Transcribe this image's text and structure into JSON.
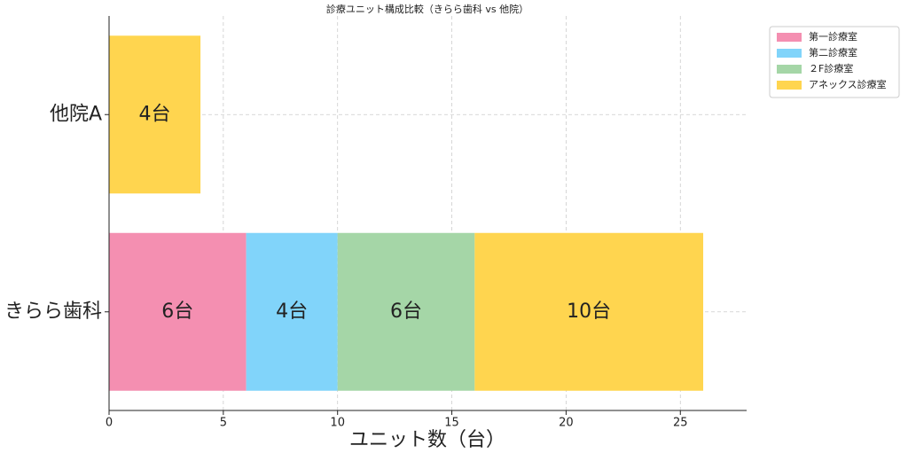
{
  "chart_data": {
    "type": "stacked-barh",
    "title": "診療ユニット構成比較（きらら歯科 vs 他院）",
    "xlabel": "ユニット数（台）",
    "categories": [
      "きらら歯科",
      "他院A"
    ],
    "series": [
      {
        "name": "第一診療室",
        "color": "#f48fb1",
        "values": [
          6,
          0
        ],
        "value_labels": [
          "6台",
          null
        ]
      },
      {
        "name": "第二診療室",
        "color": "#81d4fa",
        "values": [
          4,
          0
        ],
        "value_labels": [
          "4台",
          null
        ]
      },
      {
        "name": "２F診療室",
        "color": "#a5d6a7",
        "values": [
          6,
          0
        ],
        "value_labels": [
          "6台",
          null
        ]
      },
      {
        "name": "アネックス診療室",
        "color": "#ffd54f",
        "values": [
          10,
          4
        ],
        "value_labels": [
          "10台",
          "4台"
        ]
      }
    ],
    "xlim": [
      0,
      27.9
    ],
    "xticks": [
      0,
      5,
      10,
      15,
      20,
      25
    ],
    "grid": true,
    "legend": "upper right outside"
  }
}
